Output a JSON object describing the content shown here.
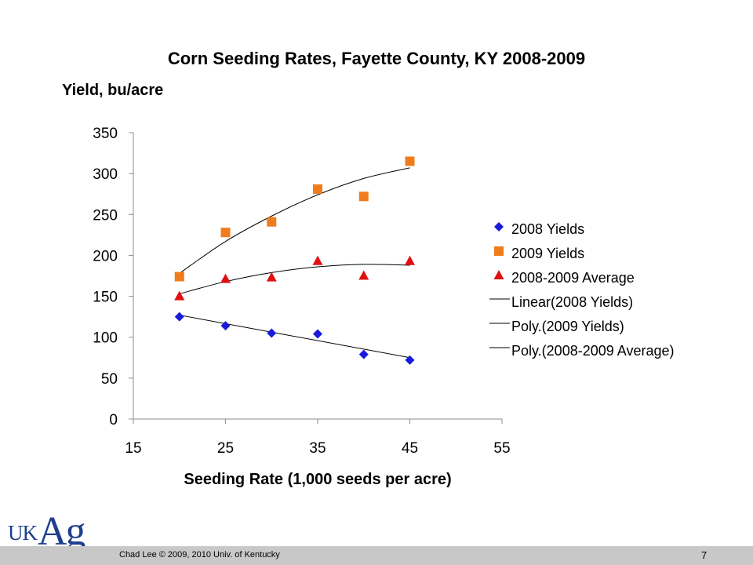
{
  "chart_data": {
    "type": "scatter",
    "title": "Corn Seeding Rates, Fayette County, KY 2008-2009",
    "ylabel": "Yield, bu/acre",
    "xlabel": "Seeding Rate (1,000 seeds per acre)",
    "xlim": [
      15,
      55
    ],
    "ylim": [
      0,
      350
    ],
    "xticks": [
      15,
      25,
      35,
      45,
      55
    ],
    "yticks": [
      0,
      50,
      100,
      150,
      200,
      250,
      300,
      350
    ],
    "grid": false,
    "legend_position": "right",
    "series": [
      {
        "name": "2008 Yields",
        "marker": "diamond",
        "color": "#1a1adb",
        "x": [
          20,
          25,
          30,
          35,
          40,
          45
        ],
        "y": [
          125,
          114,
          105,
          104,
          79,
          72
        ]
      },
      {
        "name": "2009 Yields",
        "marker": "square",
        "color": "#f07c1c",
        "x": [
          20,
          25,
          30,
          35,
          40,
          45
        ],
        "y": [
          174,
          228,
          241,
          281,
          272,
          315
        ]
      },
      {
        "name": "2008-2009 Average",
        "marker": "triangle",
        "color": "#e01010",
        "x": [
          20,
          25,
          30,
          35,
          40,
          45
        ],
        "y": [
          150,
          171,
          173,
          193,
          175,
          193
        ]
      }
    ],
    "trendlines": [
      {
        "name": "Linear(2008 Yields)",
        "type": "linear",
        "color": "#000000",
        "x": [
          20,
          45
        ],
        "y": [
          127,
          75
        ]
      },
      {
        "name": "Poly.(2009 Yields)",
        "type": "polynomial",
        "color": "#000000",
        "x": [
          20,
          25,
          30,
          35,
          40,
          45
        ],
        "y": [
          178,
          217,
          248,
          274,
          294,
          307
        ]
      },
      {
        "name": "Poly.(2008-2009 Average)",
        "type": "polynomial",
        "color": "#000000",
        "x": [
          20,
          25,
          30,
          35,
          40,
          45
        ],
        "y": [
          153,
          168,
          179,
          186,
          189,
          188
        ]
      }
    ]
  },
  "footer": {
    "credit": "Chad Lee © 2009, 2010 Univ. of Kentucky",
    "slide_number": "7"
  },
  "logo": {
    "uk": "UK",
    "ag": "Ag"
  },
  "colors": {
    "footer_bar": "#c8c8c8",
    "logo": "#1f3f8f"
  }
}
